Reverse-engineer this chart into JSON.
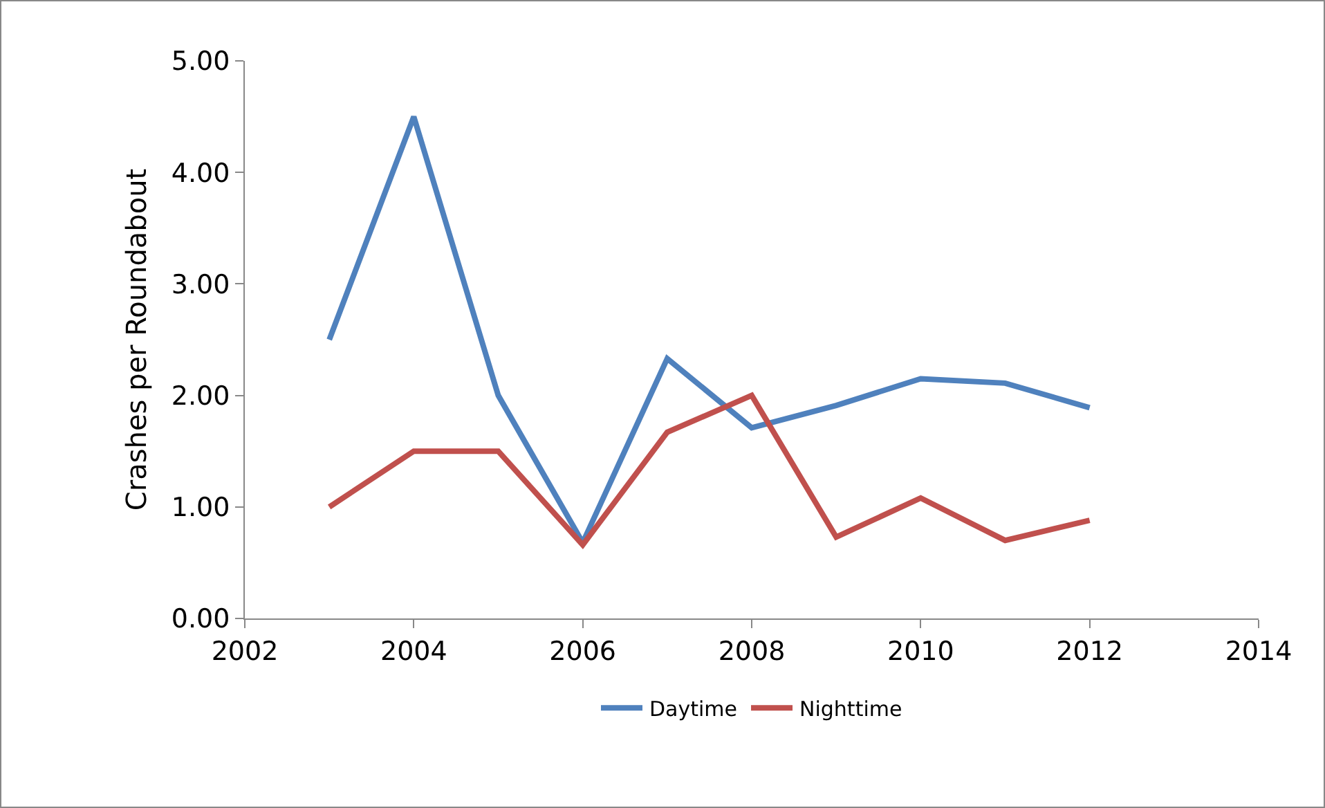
{
  "chart_data": {
    "type": "line",
    "ylabel": "Crashes per Roundabout",
    "x": [
      2003,
      2004,
      2005,
      2006,
      2007,
      2008,
      2009,
      2010,
      2011,
      2012
    ],
    "series": [
      {
        "name": "Daytime",
        "color": "#4f81bd",
        "values": [
          2.5,
          4.5,
          2.0,
          0.68,
          2.33,
          1.71,
          1.91,
          2.15,
          2.11,
          1.89
        ]
      },
      {
        "name": "Nighttime",
        "color": "#c0504d",
        "values": [
          1.0,
          1.5,
          1.5,
          0.66,
          1.67,
          2.0,
          0.73,
          1.08,
          0.7,
          0.88
        ]
      }
    ],
    "xlim": [
      2002,
      2014
    ],
    "xticks": [
      2002,
      2004,
      2006,
      2008,
      2010,
      2012,
      2014
    ],
    "ylim": [
      0,
      5
    ],
    "yticks": [
      {
        "value": 0,
        "label": "0.00"
      },
      {
        "value": 1,
        "label": "1.00"
      },
      {
        "value": 2,
        "label": "2.00"
      },
      {
        "value": 3,
        "label": "3.00"
      },
      {
        "value": 4,
        "label": "4.00"
      },
      {
        "value": 5,
        "label": "5.00"
      }
    ],
    "grid": false,
    "legend": "bottom",
    "marker": "none",
    "line_style": "solid"
  }
}
